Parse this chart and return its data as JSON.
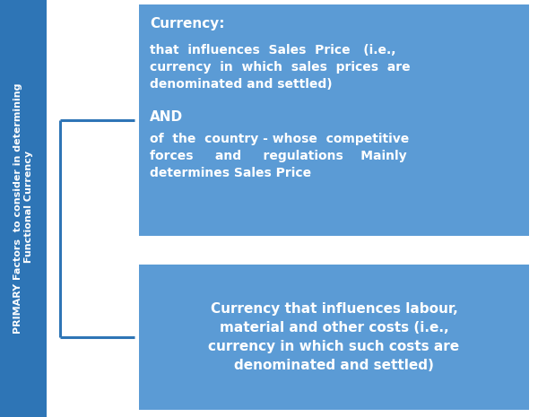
{
  "bg_color": "#ffffff",
  "sidebar_color": "#2e75b6",
  "box1_color": "#5b9bd5",
  "box2_color": "#5b9bd5",
  "sidebar_text": "PRIMARY Factors  to consider in determining\n Functional Currency",
  "sidebar_text_color": "#ffffff",
  "box1_title": "Currency:",
  "box1_line1": "that  influences  Sales  Price   (i.e.,\ncurrency  in  which  sales  prices  are\ndenominated and settled)",
  "box1_and": "AND",
  "box1_line2": "of  the  country - whose  competitive\nforces     and     regulations    Mainly\ndetermines Sales Price",
  "box2_text": "Currency that influences labour,\nmaterial and other costs (i.e.,\ncurrency in which such costs are\ndenominated and settled)",
  "text_color": "#ffffff",
  "bracket_color": "#2e75b6",
  "figsize": [
    6.0,
    4.65
  ],
  "dpi": 100
}
